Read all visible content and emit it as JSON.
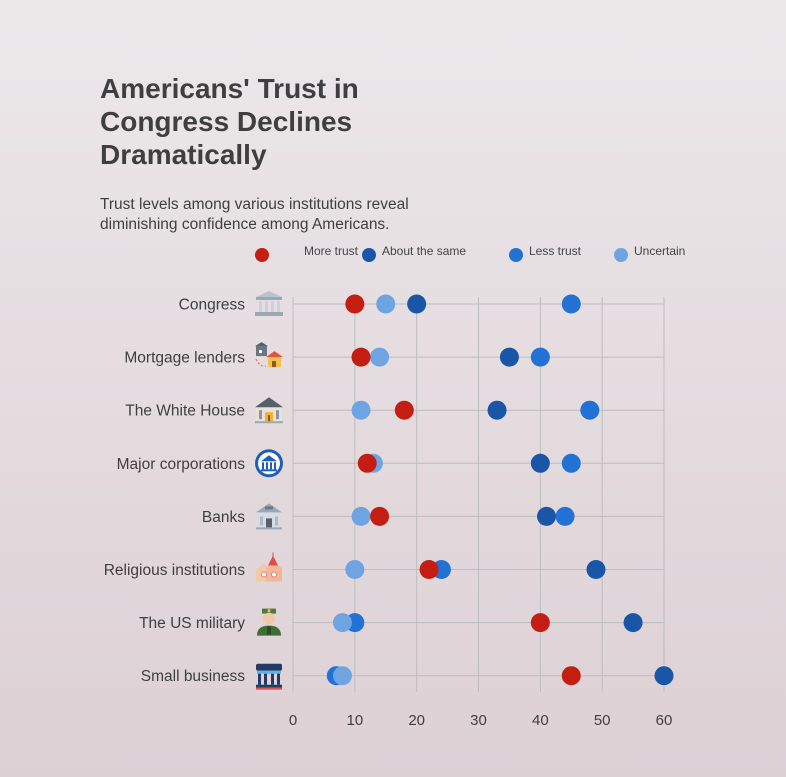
{
  "title": "Americans' Trust in Congress Declines Dramatically",
  "subtitle": "Trust levels among various institutions reveal diminishing confidence among Americans.",
  "colors": {
    "more_trust": "#c41e12",
    "about_same": "#1a56a8",
    "less_trust": "#2272d6",
    "uncertain": "#6ea4e2",
    "grid": "#bdbdbd"
  },
  "icons": [
    "congress-building-icon",
    "mortgage-houses-icon",
    "white-house-icon",
    "corporation-bank-icon",
    "bank-building-icon",
    "religious-church-icon",
    "military-soldier-icon",
    "small-business-store-icon"
  ],
  "chart_data": {
    "type": "dot",
    "title": "Americans' Trust in Congress Declines Dramatically",
    "subtitle": "Trust levels among various institutions reveal diminishing confidence among Americans.",
    "categories": [
      "Congress",
      "Mortgage lenders",
      "The White House",
      "Major corporations",
      "Banks",
      "Religious institutions",
      "The US military",
      "Small business"
    ],
    "series": [
      {
        "name": "More trust",
        "values": [
          10,
          11,
          18,
          12,
          14,
          22,
          40,
          45
        ]
      },
      {
        "name": "About the same",
        "values": [
          20,
          35,
          33,
          40,
          41,
          49,
          55,
          60
        ]
      },
      {
        "name": "Less trust",
        "values": [
          45,
          40,
          48,
          45,
          44,
          24,
          10,
          7
        ]
      },
      {
        "name": "Uncertain",
        "values": [
          15,
          14,
          11,
          13,
          11,
          10,
          8,
          8
        ]
      }
    ],
    "xticks": [
      0,
      10,
      20,
      30,
      40,
      50,
      60
    ],
    "xlim": [
      0,
      60
    ],
    "grid": true,
    "legend": "top"
  }
}
